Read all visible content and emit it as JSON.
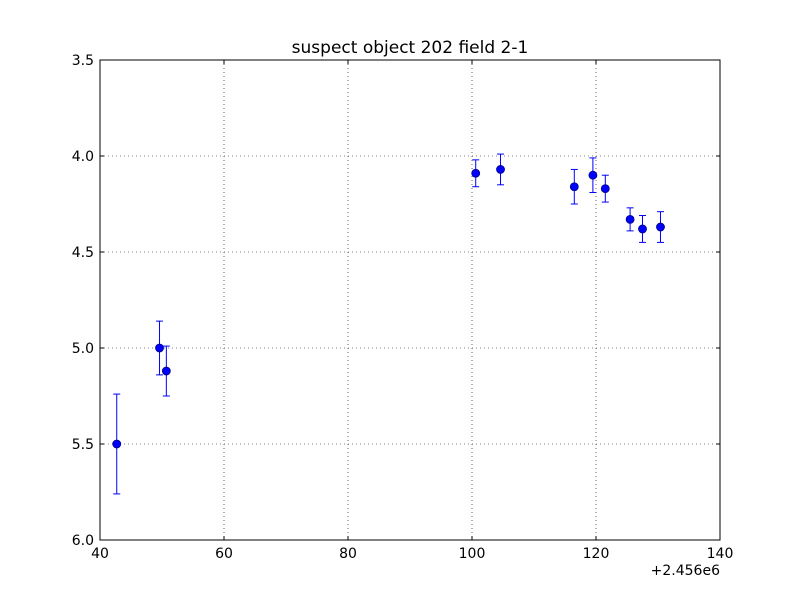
{
  "chart_data": {
    "type": "scatter",
    "title": "suspect object 202 field 2-1",
    "xlabel": "",
    "ylabel": "",
    "x_offset_label": "+2.456e6",
    "xlim": [
      40,
      140
    ],
    "ylim": [
      6.0,
      3.5
    ],
    "y_inverted": true,
    "grid": true,
    "x_ticks": [
      40,
      60,
      80,
      100,
      120,
      140
    ],
    "x_tick_labels": [
      "40",
      "60",
      "80",
      "100",
      "120",
      "140"
    ],
    "y_ticks": [
      3.5,
      4.0,
      4.5,
      5.0,
      5.5,
      6.0
    ],
    "y_tick_labels": [
      "3.5",
      "4.0",
      "4.5",
      "5.0",
      "5.5",
      "6.0"
    ],
    "marker_color": "#0000ff",
    "points": [
      {
        "x": 42.7,
        "y": 5.5,
        "err": 0.26
      },
      {
        "x": 49.6,
        "y": 5.0,
        "err": 0.14
      },
      {
        "x": 50.7,
        "y": 5.12,
        "err": 0.13
      },
      {
        "x": 100.6,
        "y": 4.09,
        "err": 0.07
      },
      {
        "x": 104.6,
        "y": 4.07,
        "err": 0.08
      },
      {
        "x": 116.5,
        "y": 4.16,
        "err": 0.09
      },
      {
        "x": 119.5,
        "y": 4.1,
        "err": 0.09
      },
      {
        "x": 121.5,
        "y": 4.17,
        "err": 0.07
      },
      {
        "x": 125.5,
        "y": 4.33,
        "err": 0.06
      },
      {
        "x": 127.5,
        "y": 4.38,
        "err": 0.07
      },
      {
        "x": 130.4,
        "y": 4.37,
        "err": 0.08
      }
    ]
  }
}
